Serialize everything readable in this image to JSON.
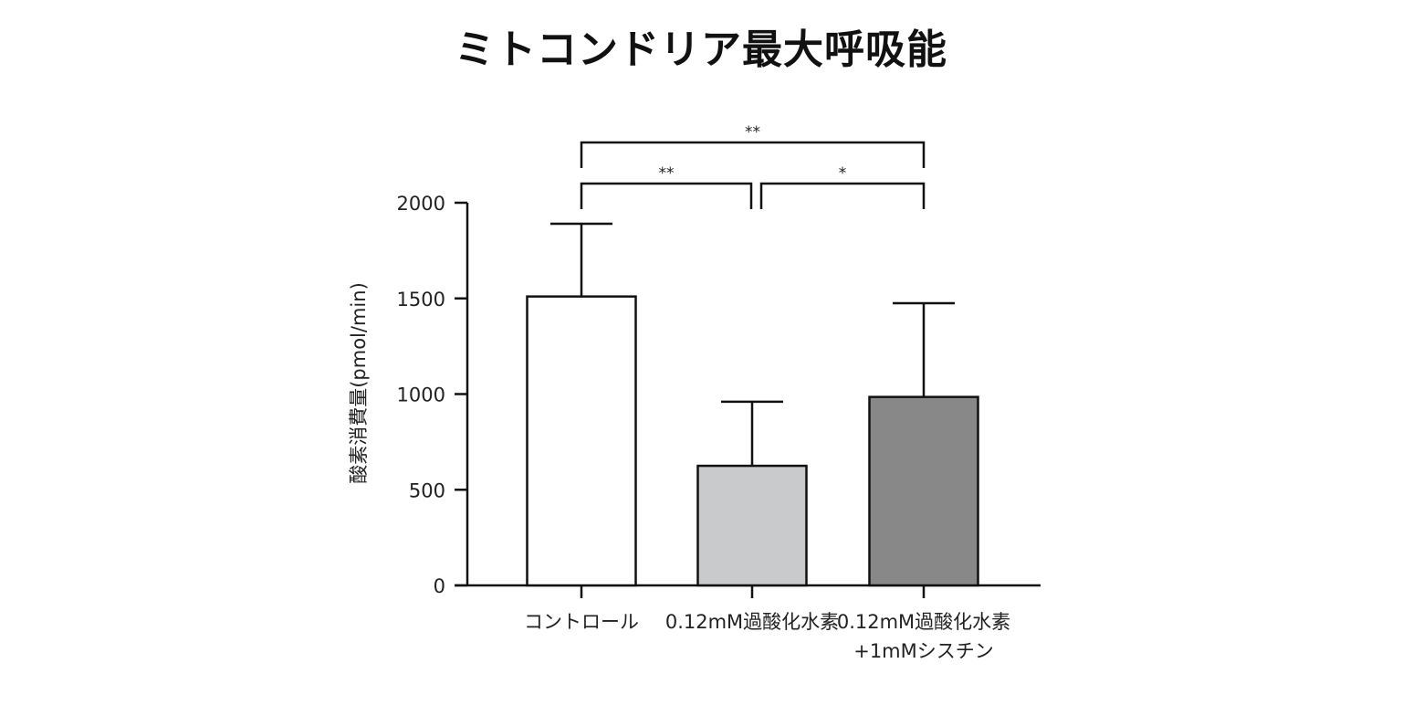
{
  "chart_data": {
    "type": "bar",
    "title": "ミトコンドリア最大呼吸能",
    "ylabel": "酸素消費量(pmol/min)",
    "xlabel": "",
    "ylim": [
      0,
      2000
    ],
    "yticks": [
      0,
      500,
      1000,
      1500,
      2000
    ],
    "categories": [
      [
        "コントロール"
      ],
      [
        "0.12mM過酸化水素"
      ],
      [
        "0.12mM過酸化水素",
        "+1mMシスチン"
      ]
    ],
    "values": [
      1510,
      625,
      985
    ],
    "errors": [
      380,
      335,
      490
    ],
    "bar_colors": [
      "#ffffff",
      "#c9cacc",
      "#888888"
    ],
    "grid": false,
    "significance": [
      {
        "from": 0,
        "to": 1,
        "label": "**"
      },
      {
        "from": 1,
        "to": 2,
        "label": "*"
      },
      {
        "from": 0,
        "to": 2,
        "label": "**"
      }
    ]
  }
}
